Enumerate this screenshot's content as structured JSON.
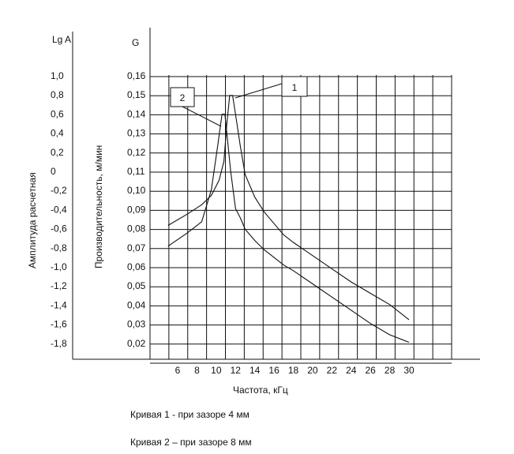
{
  "chart_data": {
    "type": "line",
    "left_axis_label": "Lg A",
    "left_axis_title": "Амплитуда  расчетная",
    "left_axis_ticks": [
      "1,0",
      "0,8",
      "0,6",
      "0,4",
      "0,2",
      "0",
      "-0,2",
      "-0,4",
      "-0,6",
      "-0,8",
      "-1,0",
      "-1,2",
      "-1,4",
      "-1,6",
      "-1,8"
    ],
    "right_axis_label": "G",
    "right_axis_title": "Производительность, м/мин",
    "right_axis_ticks": [
      "0,16",
      "0,15",
      "0,14",
      "0,13",
      "0,12",
      "0,11",
      "0,10",
      "0,09",
      "0,08",
      "0,07",
      "0,06",
      "0,05",
      "0,04",
      "0,03",
      "0,02"
    ],
    "xlabel": "Частота, кГц",
    "x_ticks": [
      "6",
      "8",
      "10",
      "12",
      "14",
      "16",
      "18",
      "20",
      "22",
      "24",
      "26",
      "28",
      "30"
    ],
    "xlim": [
      4,
      31
    ],
    "ylim": [
      0.01,
      0.16
    ],
    "series": [
      {
        "name": "1",
        "x": [
          5,
          7,
          8.5,
          9.5,
          10.3,
          10.8,
          11.1,
          11.4,
          11.7,
          12,
          12.5,
          13,
          14,
          15,
          16,
          17,
          18,
          20,
          22,
          24,
          26,
          28,
          30
        ],
        "values": [
          0.081,
          0.087,
          0.092,
          0.097,
          0.105,
          0.115,
          0.135,
          0.15,
          0.15,
          0.14,
          0.123,
          0.108,
          0.096,
          0.088,
          0.082,
          0.076,
          0.072,
          0.065,
          0.058,
          0.051,
          0.045,
          0.039,
          0.031
        ]
      },
      {
        "name": "2",
        "x": [
          5,
          7,
          8.5,
          9.5,
          10.2,
          10.6,
          10.9,
          11.2,
          11.5,
          12,
          12.5,
          13,
          14,
          15,
          16,
          17,
          18,
          20,
          22,
          24,
          26,
          28,
          30
        ],
        "values": [
          0.07,
          0.077,
          0.083,
          0.1,
          0.125,
          0.14,
          0.14,
          0.125,
          0.11,
          0.09,
          0.085,
          0.079,
          0.073,
          0.068,
          0.064,
          0.06,
          0.057,
          0.05,
          0.043,
          0.036,
          0.029,
          0.023,
          0.019
        ]
      }
    ],
    "callouts": [
      "1",
      "2"
    ],
    "grid": true
  },
  "captions": {
    "curve1": "Кривая 1 - при зазоре 4 мм",
    "curve2": "Кривая 2 – при зазоре 8 мм"
  }
}
